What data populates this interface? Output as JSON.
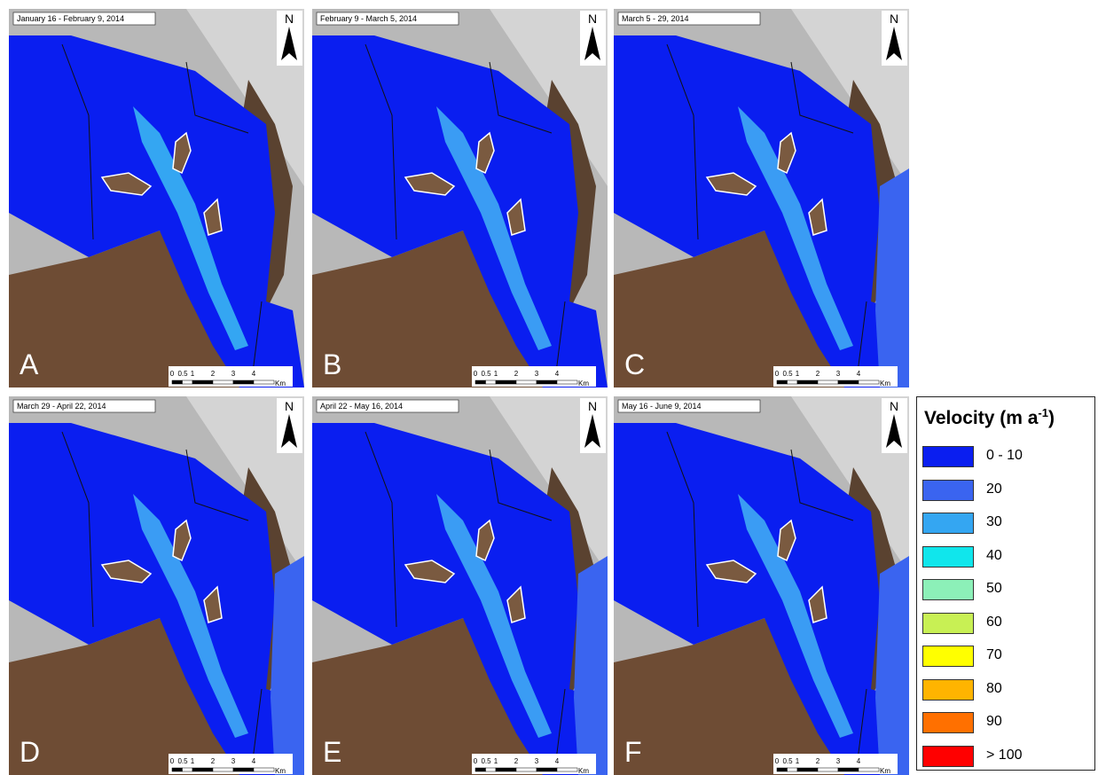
{
  "panels": [
    {
      "letter": "A",
      "date": "January 16 - February 9, 2014"
    },
    {
      "letter": "B",
      "date": "February 9 - March 5, 2014"
    },
    {
      "letter": "C",
      "date": "March 5 - 29, 2014"
    },
    {
      "letter": "D",
      "date": "March 29 - April 22, 2014"
    },
    {
      "letter": "E",
      "date": "April 22 - May 16, 2014"
    },
    {
      "letter": "F",
      "date": "May 16 - June 9, 2014"
    }
  ],
  "north": "N",
  "scale_bar": {
    "labels": [
      "0",
      "0.5",
      "1",
      "2",
      "3",
      "4"
    ],
    "unit": "Km"
  },
  "legend": {
    "title_main": "Velocity (m a",
    "title_sup": "-1",
    "title_end": ")",
    "items": [
      {
        "label": "0 - 10",
        "color": "#0a1ef0"
      },
      {
        "label": "20",
        "color": "#3a64f0"
      },
      {
        "label": "30",
        "color": "#34a6f2"
      },
      {
        "label": "40",
        "color": "#10e6ec"
      },
      {
        "label": "50",
        "color": "#8cf0b8"
      },
      {
        "label": "60",
        "color": "#c8f054"
      },
      {
        "label": "70",
        "color": "#ffff00"
      },
      {
        "label": "80",
        "color": "#ffb400"
      },
      {
        "label": "90",
        "color": "#ff7000"
      },
      {
        "label": "> 100",
        "color": "#ff0000"
      }
    ]
  }
}
